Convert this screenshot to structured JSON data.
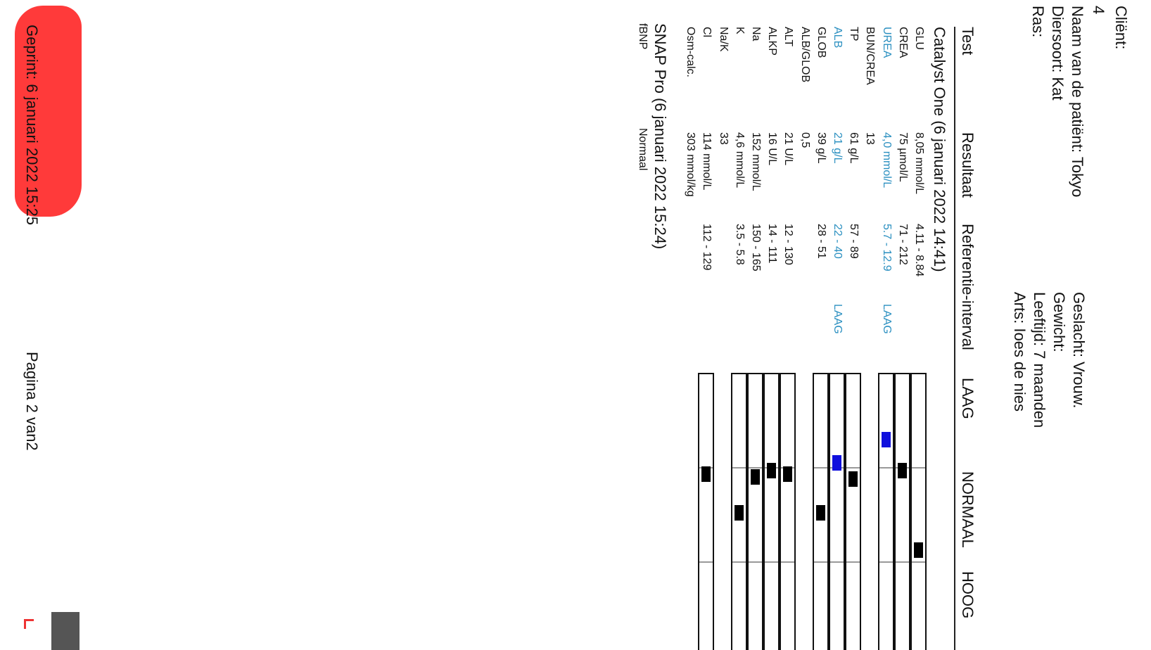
{
  "header": {
    "client_label": "Cliënt:",
    "client_id": "4",
    "patient_name": "Naam van de patiënt: Tokyo",
    "species": "Diersoort: Kat",
    "breed": "Ras:",
    "sex": "Geslacht: Vrouw.",
    "weight": "Gewicht:",
    "age": "Leeftijd: 7 maanden",
    "vet": "Arts: Ioes de nies"
  },
  "table_header": {
    "test": "Test",
    "result": "Resultaat",
    "reference": "Referentie-interval",
    "low": "LAAG",
    "normal": "NORMAAL",
    "high": "HOOG"
  },
  "catalyst": {
    "title": "Catalyst One (6 januari 2022 14:41)",
    "rows": [
      {
        "test": "GLU",
        "result": "8,05 mmol/L",
        "range": "4.11 - 8.84",
        "flag": "",
        "low": false,
        "marker": 0.88,
        "bar": true
      },
      {
        "test": "CREA",
        "result": "75 µmol/L",
        "range": "71 - 212",
        "flag": "",
        "low": false,
        "marker": 0.03,
        "bar": true
      },
      {
        "test": "UREA",
        "result": "4,0 mmol/L",
        "range": "5.7 - 12.9",
        "flag": "LAAG",
        "low": true,
        "marker": -0.3,
        "bar": true
      },
      {
        "test": "BUN/CREA",
        "result": "13",
        "range": "",
        "flag": "",
        "low": false,
        "bar": false
      },
      {
        "test": "TP",
        "result": "61 g/L",
        "range": "57 - 89",
        "flag": "",
        "low": false,
        "marker": 0.12,
        "bar": true
      },
      {
        "test": "ALB",
        "result": "21 g/L",
        "range": "22 - 40",
        "flag": "LAAG",
        "low": true,
        "marker": -0.05,
        "bar": true
      },
      {
        "test": "GLOB",
        "result": "39 g/L",
        "range": "28 - 51",
        "flag": "",
        "low": false,
        "marker": 0.48,
        "bar": true
      },
      {
        "test": "ALB/GLOB",
        "result": "0,5",
        "range": "",
        "flag": "",
        "low": false,
        "bar": false
      },
      {
        "test": "ALT",
        "result": "21 U/L",
        "range": "12 - 130",
        "flag": "",
        "low": false,
        "marker": 0.07,
        "bar": true
      },
      {
        "test": "ALKP",
        "result": "16 U/L",
        "range": "14 - 111",
        "flag": "",
        "low": false,
        "marker": 0.03,
        "bar": true
      },
      {
        "test": "Na",
        "result": "152 mmol/L",
        "range": "150 - 165",
        "flag": "",
        "low": false,
        "marker": 0.1,
        "bar": true
      },
      {
        "test": "K",
        "result": "4,6 mmol/L",
        "range": "3.5 - 5.8",
        "flag": "",
        "low": false,
        "marker": 0.48,
        "bar": true
      },
      {
        "test": "Na/K",
        "result": "33",
        "range": "",
        "flag": "",
        "low": false,
        "bar": false
      },
      {
        "test": "Cl",
        "result": "114 mmol/L",
        "range": "112 - 129",
        "flag": "",
        "low": false,
        "marker": 0.07,
        "bar": true
      },
      {
        "test": "Osm-calc.",
        "result": "303 mmol/kg",
        "range": "",
        "flag": "",
        "low": false,
        "bar": false
      }
    ]
  },
  "snap": {
    "title": "SNAP Pro (6 januari 2022 15:24)",
    "rows": [
      {
        "test": "fBNP",
        "result": "Normaal"
      }
    ]
  },
  "footer": {
    "printed": "Geprint: 6 januari 2022 15:25",
    "page": "Pagina 2 van2"
  },
  "colors": {
    "low_text": "#2a8fc0",
    "low_marker": "#1010dd",
    "redaction": "#ff3a3a"
  }
}
